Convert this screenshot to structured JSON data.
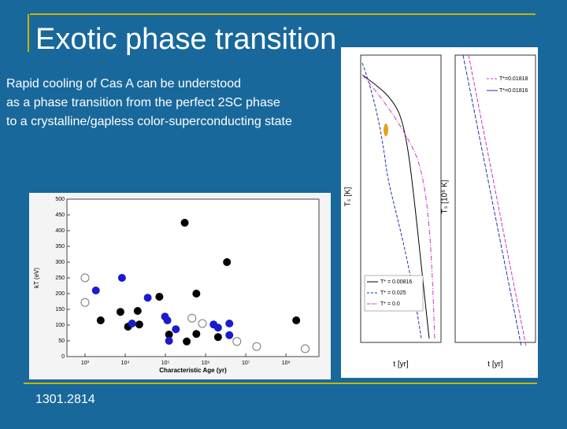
{
  "slide": {
    "title": "Exotic phase transition",
    "body_lines": [
      "Rapid cooling of Cas A can be understood",
      "as a phase transition from the perfect 2SC phase",
      "to a crystalline/gapless color-superconducting state"
    ],
    "reference": "1301.2814"
  },
  "scatter_figure": {
    "type": "scatter",
    "xlabel": "Characteristic Age (yr)",
    "ylabel": "kT (eV)",
    "log_x": true,
    "xlim": [
      355,
      660000000
    ],
    "ylim": [
      0,
      500
    ],
    "xticks": [
      {
        "value": 1000,
        "label": "10³"
      },
      {
        "value": 10000,
        "label": "10⁴"
      },
      {
        "value": 100000,
        "label": "10⁵"
      },
      {
        "value": 1000000,
        "label": "10⁶"
      },
      {
        "value": 10000000,
        "label": "10⁷"
      },
      {
        "value": 100000000,
        "label": "10⁸"
      }
    ],
    "yticks": [
      0,
      50,
      100,
      150,
      200,
      250,
      300,
      350,
      400,
      450,
      500
    ],
    "series": [
      {
        "color": "#000000",
        "marker": "filled",
        "x": [
          2450,
          7600,
          11750,
          20400,
          22400,
          70800,
          302000,
          123000,
          339000,
          589000,
          589000,
          2040000,
          3400000,
          180000000
        ],
        "values": [
          115,
          142,
          95,
          145,
          102,
          190,
          425,
          70,
          48,
          200,
          72,
          62,
          300,
          115
        ]
      },
      {
        "color": "#1a1ad0",
        "marker": "filled",
        "x": [
          1860,
          8300,
          14800,
          36300,
          97700,
          112000,
          123000,
          182000,
          1580000,
          2040000,
          3900000,
          3900000
        ],
        "values": [
          210,
          250,
          105,
          187,
          127,
          115,
          50,
          87,
          102,
          92,
          105,
          68
        ]
      },
      {
        "color": "#777777",
        "marker": "open",
        "x": [
          1000,
          1000,
          18600000,
          300000000,
          832000,
          457000,
          6000000
        ],
        "values": [
          250,
          172,
          32,
          25,
          105,
          122,
          48
        ]
      }
    ]
  },
  "cooling_figure": {
    "ylabel": "Tₛ [K]",
    "xlabel": "t [yr]",
    "legend": [
      "T* = 0.00816",
      "T* = 0.025",
      "T* = 0.0"
    ],
    "inset_ylabel": "Tₛ [10⁶ K]",
    "inset_xlabel": "t [yr]",
    "inset_legend": [
      "T*=0.01818",
      "T*=0.01816"
    ]
  }
}
